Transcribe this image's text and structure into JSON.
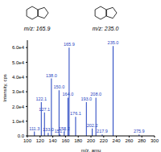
{
  "chart_data": {
    "type": "bar",
    "x_label": "m/z, amu",
    "y_label": "Intensity, cps",
    "color": "#1f3fbf",
    "structures": [
      {
        "label": "m/z: 165.9"
      },
      {
        "label": "m/z: 235.0"
      }
    ],
    "x": [
      111.3,
      122.1,
      127.1,
      133.0,
      138.0,
      150.0,
      151.7,
      158.2,
      164.0,
      165.9,
      176.1,
      193.0,
      202.2,
      208.0,
      217.9,
      235.0,
      275.9
    ],
    "x_labels": [
      "111.3",
      "122.1",
      "127.1",
      "133.0",
      "138.0",
      "150.0",
      "151.7",
      "158.2",
      "164.0",
      "165.9",
      "176.1",
      "193.0",
      "202.2",
      "208.0",
      "217.9",
      "235.0",
      "275.9"
    ],
    "values": [
      3000,
      23000,
      16000,
      2000,
      39000,
      31000,
      1000,
      3000,
      26000,
      60000,
      13000,
      23000,
      5000,
      26000,
      1000,
      61000,
      1000
    ],
    "xlim": [
      100,
      300
    ],
    "xticks": [
      100,
      120,
      140,
      160,
      180,
      200,
      220,
      240,
      260,
      280,
      300
    ],
    "ylim": [
      0,
      65000
    ],
    "yticks": [
      {
        "value": 0,
        "label": "0.0"
      },
      {
        "value": 10000,
        "label": "1.0e4"
      },
      {
        "value": 20000,
        "label": "2.0e4"
      },
      {
        "value": 30000,
        "label": "3.0e4"
      },
      {
        "value": 40000,
        "label": "4.0e4"
      },
      {
        "value": 50000,
        "label": "5.0e4"
      },
      {
        "value": 60000,
        "label": "6.0e4"
      }
    ],
    "grid": false
  }
}
